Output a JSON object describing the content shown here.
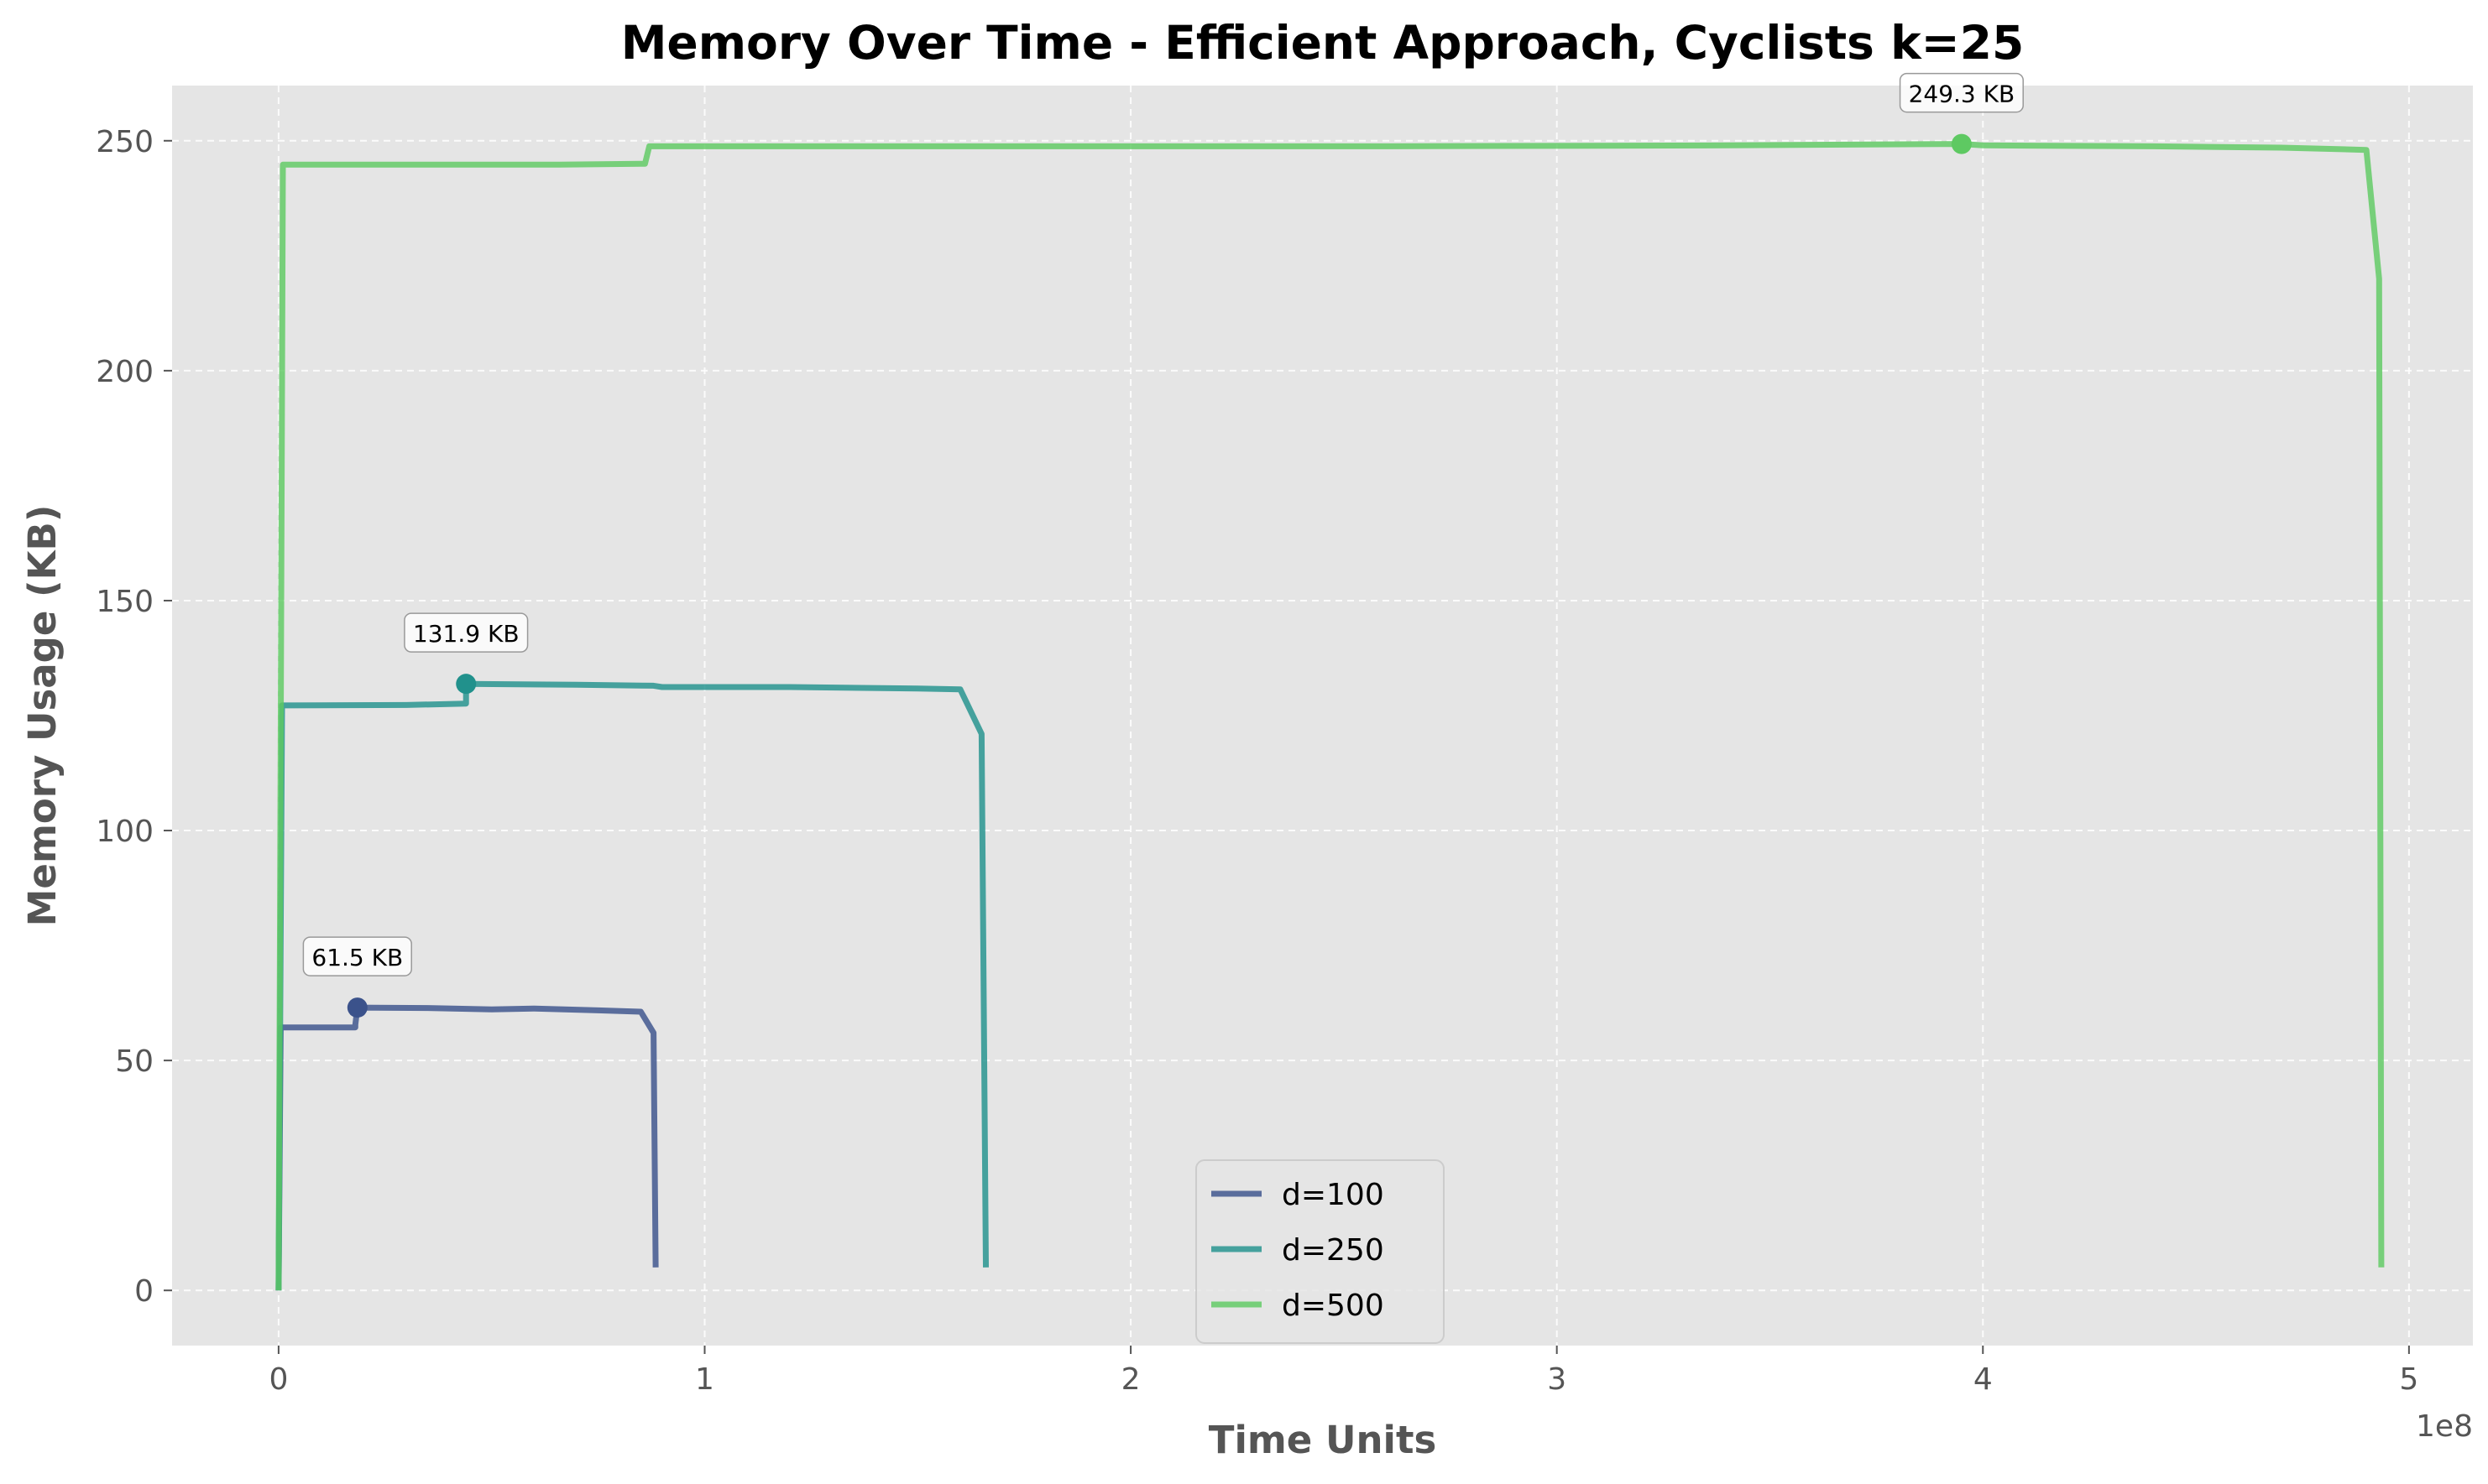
{
  "chart_data": {
    "type": "line",
    "title": "Memory Over Time - Efficient Approach, Cyclists k=25",
    "xlabel": "Time Units",
    "ylabel": "Memory Usage (KB)",
    "x_offset_label": "1e8",
    "xlim": [
      -0.25,
      5.15
    ],
    "ylim": [
      -12,
      262
    ],
    "xticks": [
      0,
      1,
      2,
      3,
      4,
      5
    ],
    "xtick_labels": [
      "0",
      "1",
      "2",
      "3",
      "4",
      "5"
    ],
    "yticks": [
      0,
      50,
      100,
      150,
      200,
      250
    ],
    "ytick_labels": [
      "0",
      "50",
      "100",
      "150",
      "200",
      "250"
    ],
    "grid": true,
    "legend_position": "lower center",
    "series": [
      {
        "name": "d=100",
        "color": "#3b528b",
        "points": [
          [
            0,
            0
          ],
          [
            0.005,
            57.2
          ],
          [
            0.18,
            57.2
          ],
          [
            0.18,
            57.8
          ],
          [
            0.185,
            61.5
          ],
          [
            0.35,
            61.4
          ],
          [
            0.5,
            61.1
          ],
          [
            0.6,
            61.3
          ],
          [
            0.75,
            60.9
          ],
          [
            0.85,
            60.6
          ],
          [
            0.88,
            56.0
          ],
          [
            0.885,
            5.0
          ]
        ],
        "peak": {
          "x": 0.185,
          "y": 61.5,
          "label": "61.5 KB"
        }
      },
      {
        "name": "d=250",
        "color": "#21918c",
        "points": [
          [
            0,
            0
          ],
          [
            0.008,
            127.2
          ],
          [
            0.3,
            127.3
          ],
          [
            0.44,
            127.6
          ],
          [
            0.44,
            131.9
          ],
          [
            0.7,
            131.7
          ],
          [
            0.88,
            131.5
          ],
          [
            0.9,
            131.2
          ],
          [
            1.2,
            131.2
          ],
          [
            1.5,
            130.9
          ],
          [
            1.6,
            130.7
          ],
          [
            1.65,
            121.0
          ],
          [
            1.66,
            5.0
          ]
        ],
        "peak": {
          "x": 0.44,
          "y": 131.9,
          "label": "131.9 KB"
        }
      },
      {
        "name": "d=500",
        "color": "#5ec962",
        "points": [
          [
            0,
            0
          ],
          [
            0.01,
            244.8
          ],
          [
            0.66,
            244.8
          ],
          [
            0.86,
            245.0
          ],
          [
            0.87,
            248.8
          ],
          [
            2.6,
            248.8
          ],
          [
            3.4,
            249.0
          ],
          [
            3.95,
            249.3
          ],
          [
            4.0,
            249.0
          ],
          [
            4.4,
            248.8
          ],
          [
            4.7,
            248.5
          ],
          [
            4.9,
            248.0
          ],
          [
            4.93,
            220.0
          ],
          [
            4.935,
            5.0
          ]
        ],
        "peak": {
          "x": 3.95,
          "y": 249.3,
          "label": "249.3 KB"
        }
      }
    ]
  }
}
